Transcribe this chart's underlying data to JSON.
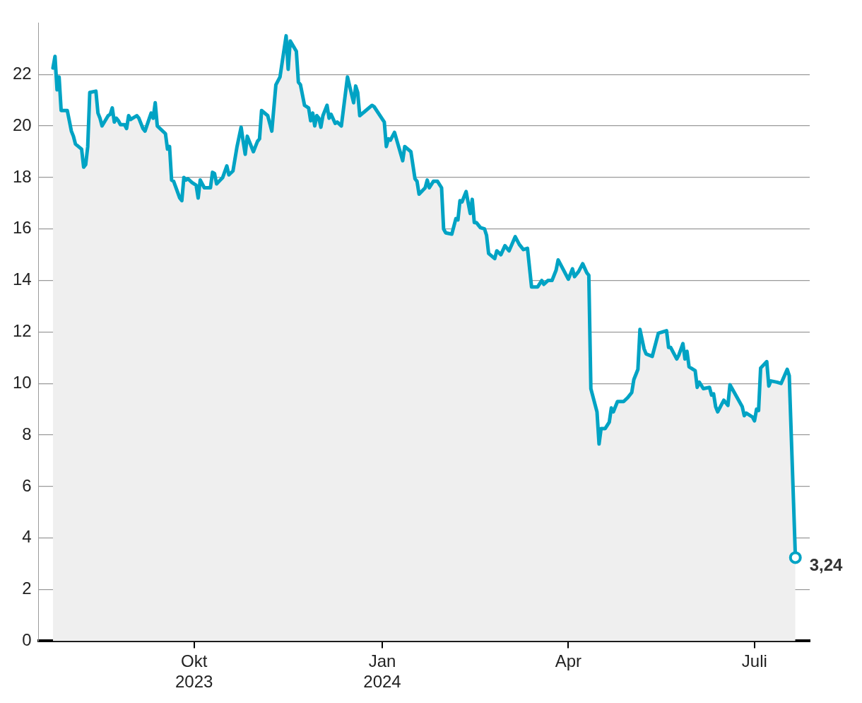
{
  "chart_data": {
    "type": "area",
    "xlim": [
      "2023-07-17",
      "2024-07-28"
    ],
    "yticks": [
      0,
      2,
      4,
      6,
      8,
      10,
      12,
      14,
      16,
      18,
      20,
      22
    ],
    "xticks": [
      {
        "value": "2023-10-01",
        "label": "Okt 2023"
      },
      {
        "value": "2024-01-01",
        "label": "Jan 2024"
      },
      {
        "value": "2024-04-01",
        "label": "Apr"
      },
      {
        "value": "2024-07-01",
        "label": "Juli"
      }
    ],
    "ylim": [
      0,
      24
    ],
    "grid": "y",
    "legend": false,
    "marker": "none",
    "line_style": "solid",
    "annotations": [
      {
        "text": "3,24",
        "x": "2024-07-21",
        "y": 3.24
      }
    ],
    "series": [
      {
        "color": "#00a3c4",
        "x": [
          "2023-07-24",
          "2023-07-25",
          "2023-07-26",
          "2023-07-27",
          "2023-07-28",
          "2023-07-31",
          "2023-08-01",
          "2023-08-02",
          "2023-08-03",
          "2023-08-04",
          "2023-08-07",
          "2023-08-08",
          "2023-08-09",
          "2023-08-10",
          "2023-08-11",
          "2023-08-14",
          "2023-08-15",
          "2023-08-16",
          "2023-08-17",
          "2023-08-20",
          "2023-08-21",
          "2023-08-22",
          "2023-08-23",
          "2023-08-24",
          "2023-08-25",
          "2023-08-26",
          "2023-08-28",
          "2023-08-29",
          "2023-08-30",
          "2023-08-31",
          "2023-09-03",
          "2023-09-04",
          "2023-09-06",
          "2023-09-07",
          "2023-09-10",
          "2023-09-11",
          "2023-09-12",
          "2023-09-13",
          "2023-09-17",
          "2023-09-18",
          "2023-09-19",
          "2023-09-20",
          "2023-09-21",
          "2023-09-24",
          "2023-09-25",
          "2023-09-26",
          "2023-09-27",
          "2023-09-28",
          "2023-09-30",
          "2023-10-02",
          "2023-10-03",
          "2023-10-04",
          "2023-10-06",
          "2023-10-09",
          "2023-10-10",
          "2023-10-11",
          "2023-10-12",
          "2023-10-15",
          "2023-10-17",
          "2023-10-18",
          "2023-10-20",
          "2023-10-22",
          "2023-10-24",
          "2023-10-25",
          "2023-10-26",
          "2023-10-27",
          "2023-10-30",
          "2023-10-31",
          "2023-11-01",
          "2023-11-02",
          "2023-11-03",
          "2023-11-06",
          "2023-11-08",
          "2023-11-10",
          "2023-11-12",
          "2023-11-15",
          "2023-11-16",
          "2023-11-17",
          "2023-11-20",
          "2023-11-21",
          "2023-11-22",
          "2023-11-24",
          "2023-11-26",
          "2023-11-27",
          "2023-11-28",
          "2023-11-29",
          "2023-11-30",
          "2023-12-01",
          "2023-12-02",
          "2023-12-03",
          "2023-12-05",
          "2023-12-06",
          "2023-12-07",
          "2023-12-09",
          "2023-12-10",
          "2023-12-12",
          "2023-12-15",
          "2023-12-18",
          "2023-12-19",
          "2023-12-20",
          "2023-12-21",
          "2023-12-24",
          "2023-12-27",
          "2023-12-28",
          "2024-01-02",
          "2024-01-03",
          "2024-01-04",
          "2024-01-05",
          "2024-01-07",
          "2024-01-11",
          "2024-01-12",
          "2024-01-15",
          "2024-01-17",
          "2024-01-18",
          "2024-01-19",
          "2024-01-22",
          "2024-01-23",
          "2024-01-24",
          "2024-01-26",
          "2024-01-28",
          "2024-01-30",
          "2024-01-31",
          "2024-02-01",
          "2024-02-04",
          "2024-02-06",
          "2024-02-07",
          "2024-02-08",
          "2024-02-09",
          "2024-02-11",
          "2024-02-13",
          "2024-02-14",
          "2024-02-15",
          "2024-02-16",
          "2024-02-18",
          "2024-02-20",
          "2024-02-21",
          "2024-02-22",
          "2024-02-25",
          "2024-02-26",
          "2024-02-28",
          "2024-03-01",
          "2024-03-03",
          "2024-03-06",
          "2024-03-08",
          "2024-03-10",
          "2024-03-12",
          "2024-03-14",
          "2024-03-17",
          "2024-03-19",
          "2024-03-20",
          "2024-03-22",
          "2024-03-24",
          "2024-03-26",
          "2024-03-27",
          "2024-04-01",
          "2024-04-03",
          "2024-04-04",
          "2024-04-06",
          "2024-04-08",
          "2024-04-10",
          "2024-04-11",
          "2024-04-12",
          "2024-04-15",
          "2024-04-16",
          "2024-04-17",
          "2024-04-19",
          "2024-04-21",
          "2024-04-22",
          "2024-04-23",
          "2024-04-25",
          "2024-04-28",
          "2024-04-30",
          "2024-05-02",
          "2024-05-03",
          "2024-05-05",
          "2024-05-06",
          "2024-05-08",
          "2024-05-09",
          "2024-05-12",
          "2024-05-15",
          "2024-05-19",
          "2024-05-20",
          "2024-05-21",
          "2024-05-24",
          "2024-05-25",
          "2024-05-27",
          "2024-05-28",
          "2024-05-29",
          "2024-05-30",
          "2024-06-02",
          "2024-06-03",
          "2024-06-04",
          "2024-06-06",
          "2024-06-09",
          "2024-06-10",
          "2024-06-11",
          "2024-06-12",
          "2024-06-13",
          "2024-06-16",
          "2024-06-18",
          "2024-06-19",
          "2024-06-25",
          "2024-06-26",
          "2024-06-27",
          "2024-06-30",
          "2024-07-01",
          "2024-07-02",
          "2024-07-03",
          "2024-07-04",
          "2024-07-07",
          "2024-07-08",
          "2024-07-09",
          "2024-07-12",
          "2024-07-14",
          "2024-07-17",
          "2024-07-18",
          "2024-07-21"
        ],
        "values": [
          22.25,
          22.7,
          21.4,
          21.9,
          20.6,
          20.6,
          20.2,
          19.8,
          19.6,
          19.3,
          19.1,
          18.4,
          18.5,
          19.2,
          21.3,
          21.35,
          20.5,
          20.3,
          20.0,
          20.4,
          20.45,
          20.7,
          20.15,
          20.3,
          20.2,
          20.05,
          20.05,
          19.9,
          20.4,
          20.25,
          20.4,
          20.3,
          19.9,
          19.8,
          20.5,
          20.3,
          20.9,
          20.0,
          19.7,
          19.1,
          19.2,
          17.9,
          17.85,
          17.2,
          17.1,
          18.0,
          17.9,
          17.95,
          17.8,
          17.7,
          17.2,
          17.9,
          17.6,
          17.6,
          18.2,
          18.15,
          17.75,
          18.0,
          18.45,
          18.1,
          18.25,
          19.2,
          19.95,
          19.4,
          18.9,
          19.6,
          19.0,
          19.2,
          19.4,
          19.5,
          20.6,
          20.4,
          19.8,
          21.6,
          21.9,
          23.5,
          22.2,
          23.3,
          22.9,
          21.7,
          21.6,
          20.8,
          20.7,
          20.2,
          20.5,
          20.0,
          20.4,
          20.3,
          19.95,
          20.4,
          20.8,
          20.3,
          20.45,
          20.1,
          20.15,
          20.0,
          21.9,
          20.9,
          21.55,
          21.3,
          20.4,
          20.6,
          20.8,
          20.75,
          20.15,
          19.2,
          19.5,
          19.45,
          19.75,
          18.65,
          19.2,
          19.0,
          17.95,
          17.85,
          17.35,
          17.6,
          17.9,
          17.6,
          17.85,
          17.85,
          17.6,
          16.0,
          15.85,
          15.8,
          16.4,
          16.35,
          17.1,
          17.05,
          17.45,
          16.6,
          17.15,
          16.25,
          16.25,
          16.05,
          16.0,
          15.75,
          15.05,
          14.85,
          15.15,
          15.0,
          15.35,
          15.15,
          15.7,
          15.4,
          15.2,
          15.25,
          13.75,
          13.75,
          14.0,
          13.85,
          14.0,
          14.0,
          14.4,
          14.8,
          14.05,
          14.45,
          14.15,
          14.35,
          14.65,
          14.3,
          14.2,
          9.8,
          8.9,
          7.65,
          8.25,
          8.25,
          8.5,
          9.05,
          8.9,
          9.3,
          9.3,
          9.45,
          9.65,
          10.15,
          10.55,
          12.1,
          11.35,
          11.15,
          11.05,
          11.95,
          12.05,
          11.4,
          11.4,
          10.95,
          11.1,
          11.55,
          10.95,
          11.25,
          10.65,
          10.5,
          9.85,
          10.05,
          9.8,
          9.85,
          9.55,
          9.6,
          9.1,
          8.9,
          9.35,
          9.15,
          9.95,
          9.1,
          8.75,
          8.85,
          8.7,
          8.55,
          9.0,
          8.95,
          10.6,
          10.85,
          9.9,
          10.1,
          10.05,
          10.0,
          10.55,
          10.3,
          3.24
        ]
      }
    ]
  }
}
